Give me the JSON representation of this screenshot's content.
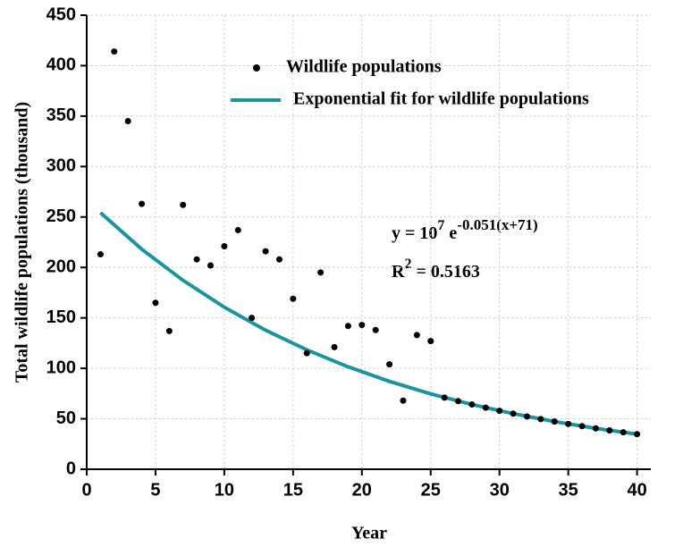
{
  "chart_data": {
    "type": "scatter",
    "x_label": "Year",
    "y_label": "Total wildlife populations (thousand)",
    "annotations": {
      "equation": [
        "y = 10",
        "7",
        "e",
        "-0.051(x+71)"
      ],
      "r_squared": [
        "R",
        "2",
        "= 0.5163"
      ]
    },
    "xlim": [
      0,
      41
    ],
    "ylim": [
      0,
      450
    ],
    "xticks": [
      0,
      5,
      10,
      15,
      20,
      25,
      30,
      35,
      40
    ],
    "yticks": [
      0,
      50,
      100,
      150,
      200,
      250,
      300,
      350,
      400,
      450
    ],
    "grid": true,
    "series": [
      {
        "name": "Wildlife populations",
        "type": "scatter",
        "color": "#000000",
        "x": [
          1,
          2,
          3,
          4,
          5,
          6,
          7,
          8,
          9,
          10,
          11,
          12,
          13,
          14,
          15,
          16,
          17,
          18,
          19,
          20,
          21,
          22,
          23,
          24,
          25,
          26,
          27,
          28,
          29,
          30,
          31,
          32,
          33,
          34,
          35,
          36,
          37,
          38,
          39,
          40
        ],
        "values": [
          213,
          414,
          345,
          263,
          165,
          137,
          262,
          208,
          202,
          221,
          237,
          150,
          216,
          208,
          169,
          115,
          195,
          121,
          142,
          143,
          138,
          104,
          68,
          133,
          127,
          71.0,
          67.5,
          64.2,
          61.0,
          57.9,
          55.1,
          52.3,
          49.7,
          47.3,
          44.9,
          42.7,
          40.5,
          38.5,
          36.6,
          34.8
        ]
      },
      {
        "name": "Exponential fit for wildlife populations",
        "type": "line",
        "color": "#1a95a0",
        "x": [
          1,
          4,
          7,
          10,
          13,
          16,
          19,
          22,
          25,
          28,
          31,
          34,
          37,
          40
        ],
        "values": [
          254.2,
          218.1,
          187.2,
          160.6,
          137.8,
          118.3,
          101.5,
          87.1,
          74.7,
          64.2,
          55.1,
          47.3,
          40.5,
          34.8
        ]
      }
    ]
  }
}
